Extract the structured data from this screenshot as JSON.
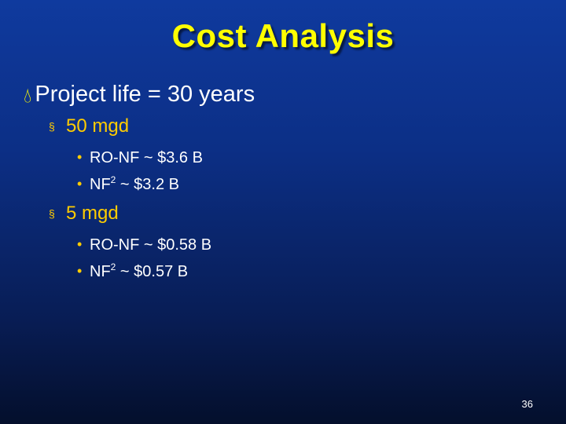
{
  "slide": {
    "title": "Cost Analysis",
    "page_number": "36",
    "main_point": "Project life = 30 years",
    "groups": [
      {
        "label": "50 mgd",
        "items": [
          {
            "pre": "RO-NF ~ $3.6 B",
            "sup": "",
            "post": ""
          },
          {
            "pre": "NF",
            "sup": "2",
            "post": " ~ $3.2 B"
          }
        ]
      },
      {
        "label": "5 mgd",
        "items": [
          {
            "pre": "RO-NF ~ $0.58 B",
            "sup": "",
            "post": ""
          },
          {
            "pre": "NF",
            "sup": "2",
            "post": " ~ $0.57 B"
          }
        ]
      }
    ],
    "colors": {
      "title": "#ffff00",
      "subbullet": "#ffcc00",
      "background_top": "#0f3a9e",
      "background_bottom": "#040f2c"
    },
    "icons": {
      "main_bullet": "teardrop-bullet-icon",
      "subbullet": "square-bullet-icon",
      "item_bullet": "dot-bullet-icon"
    }
  }
}
